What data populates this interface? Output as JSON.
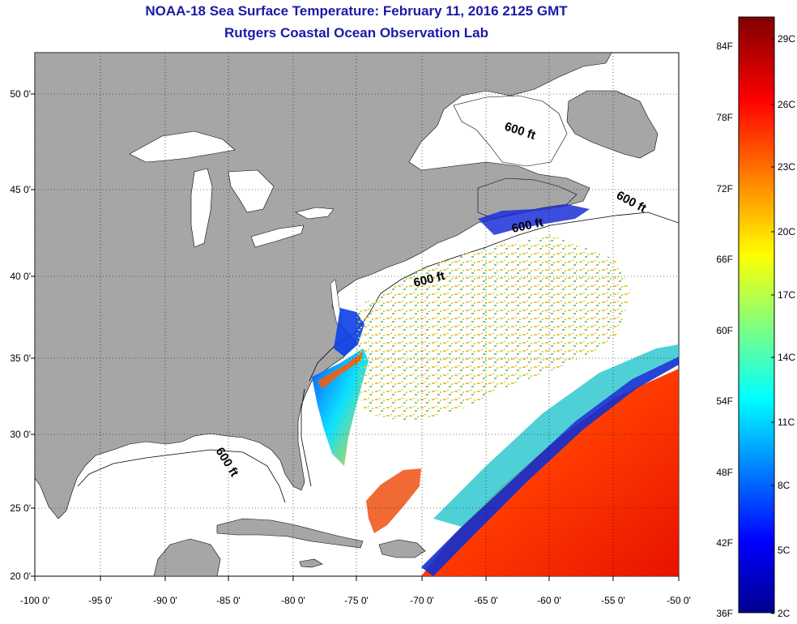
{
  "title": "NOAA-18 Sea Surface Temperature:  February 11, 2016 2125 GMT",
  "subtitle": "Rutgers Coastal Ocean Observation Lab",
  "lat_ticks": [
    "50 0'",
    "45 0'",
    "40 0'",
    "35 0'",
    "30 0'",
    "25 0'",
    "20 0'"
  ],
  "lon_ticks": [
    "-100 0'",
    "-95 0'",
    "-90 0'",
    "-85 0'",
    "-80 0'",
    "-75 0'",
    "-70 0'",
    "-65 0'",
    "-60 0'",
    "-55 0'",
    "-50 0'"
  ],
  "depth_contour_label": "600 ft",
  "colorbar": {
    "f_labels": [
      "84F",
      "78F",
      "72F",
      "66F",
      "60F",
      "54F",
      "48F",
      "42F",
      "36F"
    ],
    "c_labels": [
      "29C",
      "26C",
      "23C",
      "20C",
      "17C",
      "14C",
      "11C",
      "8C",
      "5C",
      "2C"
    ]
  },
  "colors": {
    "land": "#a6a6a6",
    "ocean": "#ffffff",
    "title": "#1a1aa8"
  }
}
